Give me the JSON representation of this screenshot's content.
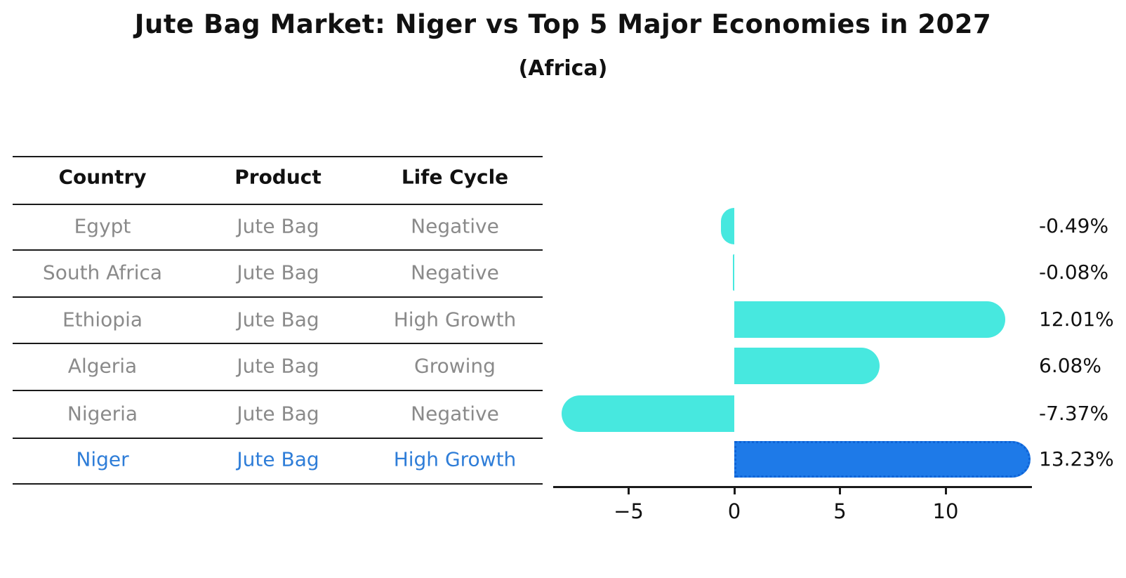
{
  "header": {
    "title": "Jute Bag Market: Niger vs Top 5 Major Economies in 2027",
    "subtitle": "(Africa)"
  },
  "table": {
    "headers": [
      "Country",
      "Product",
      "Life Cycle"
    ],
    "rows": [
      {
        "country": "Egypt",
        "product": "Jute Bag",
        "life_cycle": "Negative",
        "highlight": false
      },
      {
        "country": "South Africa",
        "product": "Jute Bag",
        "life_cycle": "Negative",
        "highlight": false
      },
      {
        "country": "Ethiopia",
        "product": "Jute Bag",
        "life_cycle": "High Growth",
        "highlight": false
      },
      {
        "country": "Algeria",
        "product": "Jute Bag",
        "life_cycle": "Growing",
        "highlight": false
      },
      {
        "country": "Nigeria",
        "product": "Jute Bag",
        "life_cycle": "Negative",
        "highlight": false
      },
      {
        "country": "Niger",
        "product": "Jute Bag",
        "life_cycle": "High Growth",
        "highlight": true
      }
    ]
  },
  "chart_data": {
    "type": "bar",
    "orientation": "horizontal",
    "title": "Jute Bag Market: Niger vs Top 5 Major Economies in 2027",
    "subtitle": "(Africa)",
    "categories": [
      "Egypt",
      "South Africa",
      "Ethiopia",
      "Algeria",
      "Nigeria",
      "Niger"
    ],
    "values": [
      -0.49,
      -0.08,
      12.01,
      6.08,
      -7.37,
      13.23
    ],
    "value_labels": [
      "-0.49%",
      "-0.08%",
      "12.01%",
      "6.08%",
      "-7.37%",
      "13.23%"
    ],
    "unit": "percent",
    "x_ticks": [
      -5,
      0,
      5,
      10
    ],
    "x_tick_labels": [
      "−5",
      "0",
      "5",
      "10"
    ],
    "xlim": [
      -8.6,
      14.1
    ],
    "grid": false,
    "legend": null,
    "highlight_index": 5,
    "colors": {
      "bar": "#47E8DF",
      "highlight_bar": "#1E7AE8",
      "highlight_border": "#0E63D6",
      "highlight_text": "#2E7DD8",
      "row_text": "#8A8A8A",
      "header_text": "#111111",
      "axis": "#1A1A1A",
      "background": "#FFFFFF"
    }
  }
}
